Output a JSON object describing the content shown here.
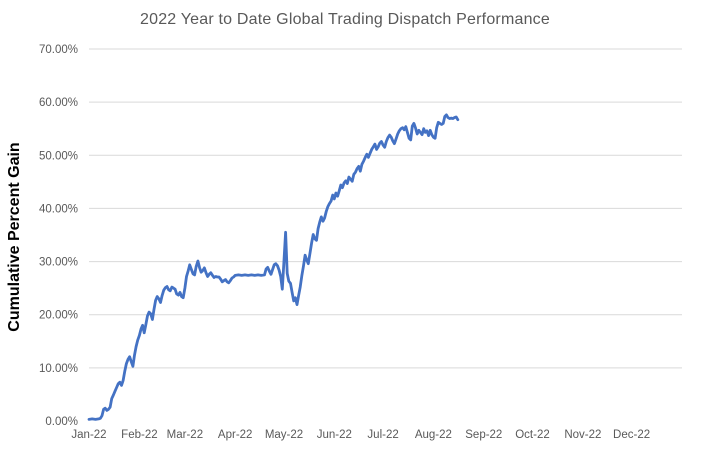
{
  "colors": {
    "line": "#4472C4",
    "title_text": "#595959",
    "axis_text": "#595959",
    "axis_title_text": "#000000",
    "gridline": "#D9D9D9",
    "background": "#FFFFFF"
  },
  "chart_data": {
    "type": "line",
    "title": "2022 Year to Date Global Trading Dispatch Performance",
    "xlabel": "",
    "ylabel": "Cumulative Percent Gain",
    "legend": false,
    "grid": "horizontal",
    "ylim": [
      0,
      70
    ],
    "y_tick_labels": [
      "0.00%",
      "10.00%",
      "20.00%",
      "30.00%",
      "40.00%",
      "50.00%",
      "60.00%",
      "70.00%"
    ],
    "x_tick_labels": [
      "Jan-22",
      "Feb-22",
      "Mar-22",
      "Apr-22",
      "May-22",
      "Jun-22",
      "Jul-22",
      "Aug-22",
      "Sep-22",
      "Oct-22",
      "Nov-22",
      "Dec-22"
    ],
    "x_tick_days": [
      0,
      31,
      59,
      90,
      120,
      151,
      181,
      212,
      243,
      273,
      304,
      334
    ],
    "x_axis_span_days": 365,
    "x_unit": "days since Jan 1 2022",
    "y_unit": "cumulative percent gain",
    "series": [
      {
        "name": "Cumulative Percent Gain",
        "points": [
          [
            0,
            0.3
          ],
          [
            2,
            0.4
          ],
          [
            4,
            0.3
          ],
          [
            6,
            0.4
          ],
          [
            7,
            0.5
          ],
          [
            8,
            1.0
          ],
          [
            9,
            2.2
          ],
          [
            10,
            2.4
          ],
          [
            11,
            2.0
          ],
          [
            12,
            2.2
          ],
          [
            13,
            2.6
          ],
          [
            14,
            4.2
          ],
          [
            15,
            4.9
          ],
          [
            16,
            5.6
          ],
          [
            17,
            6.3
          ],
          [
            18,
            7.0
          ],
          [
            19,
            7.3
          ],
          [
            20,
            6.7
          ],
          [
            21,
            7.6
          ],
          [
            22,
            9.3
          ],
          [
            23,
            10.8
          ],
          [
            24,
            11.6
          ],
          [
            25,
            12.1
          ],
          [
            26,
            11.2
          ],
          [
            27,
            10.3
          ],
          [
            28,
            12.4
          ],
          [
            29,
            14.0
          ],
          [
            30,
            15.2
          ],
          [
            31,
            16.1
          ],
          [
            32,
            17.3
          ],
          [
            33,
            18.0
          ],
          [
            34,
            16.6
          ],
          [
            35,
            18.2
          ],
          [
            36,
            19.8
          ],
          [
            37,
            20.5
          ],
          [
            38,
            20.2
          ],
          [
            39,
            19.1
          ],
          [
            40,
            21.0
          ],
          [
            41,
            22.7
          ],
          [
            42,
            23.4
          ],
          [
            43,
            23.0
          ],
          [
            44,
            22.3
          ],
          [
            45,
            23.6
          ],
          [
            46,
            24.6
          ],
          [
            47,
            25.1
          ],
          [
            48,
            25.3
          ],
          [
            49,
            24.7
          ],
          [
            50,
            24.5
          ],
          [
            51,
            25.2
          ],
          [
            52,
            25.0
          ],
          [
            53,
            24.8
          ],
          [
            54,
            23.9
          ],
          [
            55,
            23.7
          ],
          [
            56,
            24.2
          ],
          [
            57,
            23.4
          ],
          [
            58,
            23.2
          ],
          [
            59,
            25.0
          ],
          [
            60,
            27.2
          ],
          [
            61,
            28.2
          ],
          [
            62,
            29.4
          ],
          [
            63,
            28.5
          ],
          [
            64,
            27.7
          ],
          [
            65,
            27.5
          ],
          [
            66,
            29.1
          ],
          [
            67,
            30.1
          ],
          [
            68,
            28.9
          ],
          [
            69,
            28.0
          ],
          [
            70,
            28.3
          ],
          [
            71,
            28.8
          ],
          [
            72,
            27.9
          ],
          [
            73,
            27.2
          ],
          [
            74,
            27.6
          ],
          [
            75,
            27.9
          ],
          [
            76,
            27.4
          ],
          [
            77,
            27.0
          ],
          [
            78,
            27.2
          ],
          [
            79,
            27.1
          ],
          [
            80,
            27.1
          ],
          [
            81,
            26.7
          ],
          [
            82,
            26.2
          ],
          [
            83,
            26.4
          ],
          [
            84,
            26.6
          ],
          [
            85,
            26.2
          ],
          [
            86,
            26.0
          ],
          [
            87,
            26.4
          ],
          [
            88,
            26.9
          ],
          [
            89,
            27.1
          ],
          [
            90,
            27.4
          ],
          [
            92,
            27.5
          ],
          [
            94,
            27.4
          ],
          [
            96,
            27.5
          ],
          [
            98,
            27.4
          ],
          [
            100,
            27.5
          ],
          [
            102,
            27.4
          ],
          [
            104,
            27.5
          ],
          [
            106,
            27.4
          ],
          [
            108,
            27.5
          ],
          [
            109,
            28.6
          ],
          [
            110,
            28.9
          ],
          [
            111,
            28.2
          ],
          [
            112,
            27.6
          ],
          [
            113,
            28.5
          ],
          [
            114,
            29.4
          ],
          [
            115,
            29.6
          ],
          [
            116,
            29.2
          ],
          [
            117,
            28.4
          ],
          [
            118,
            27.2
          ],
          [
            119,
            24.8
          ],
          [
            120,
            30.2
          ],
          [
            121,
            35.5
          ],
          [
            122,
            27.8
          ],
          [
            123,
            26.3
          ],
          [
            124,
            25.9
          ],
          [
            125,
            24.2
          ],
          [
            126,
            22.6
          ],
          [
            127,
            23.2
          ],
          [
            128,
            21.9
          ],
          [
            129,
            23.6
          ],
          [
            130,
            25.2
          ],
          [
            131,
            27.3
          ],
          [
            132,
            29.2
          ],
          [
            133,
            31.2
          ],
          [
            134,
            30.3
          ],
          [
            135,
            29.6
          ],
          [
            136,
            31.6
          ],
          [
            137,
            33.5
          ],
          [
            138,
            35.1
          ],
          [
            139,
            34.3
          ],
          [
            140,
            34.0
          ],
          [
            141,
            36.2
          ],
          [
            142,
            37.4
          ],
          [
            143,
            38.4
          ],
          [
            144,
            37.6
          ],
          [
            145,
            38.2
          ],
          [
            146,
            39.4
          ],
          [
            147,
            40.3
          ],
          [
            148,
            40.9
          ],
          [
            149,
            41.4
          ],
          [
            150,
            42.5
          ],
          [
            151,
            41.8
          ],
          [
            152,
            42.9
          ],
          [
            153,
            42.3
          ],
          [
            154,
            43.3
          ],
          [
            155,
            44.4
          ],
          [
            156,
            43.9
          ],
          [
            157,
            44.8
          ],
          [
            158,
            45.2
          ],
          [
            159,
            44.7
          ],
          [
            160,
            45.9
          ],
          [
            161,
            45.5
          ],
          [
            162,
            45.1
          ],
          [
            163,
            46.4
          ],
          [
            164,
            46.8
          ],
          [
            165,
            47.5
          ],
          [
            166,
            47.9
          ],
          [
            167,
            47.0
          ],
          [
            168,
            48.3
          ],
          [
            169,
            48.9
          ],
          [
            170,
            49.6
          ],
          [
            171,
            50.2
          ],
          [
            172,
            49.6
          ],
          [
            173,
            50.4
          ],
          [
            174,
            51.1
          ],
          [
            175,
            51.6
          ],
          [
            176,
            52.1
          ],
          [
            177,
            51.1
          ],
          [
            178,
            51.6
          ],
          [
            179,
            52.3
          ],
          [
            180,
            52.6
          ],
          [
            181,
            51.9
          ],
          [
            182,
            51.5
          ],
          [
            183,
            52.6
          ],
          [
            184,
            53.3
          ],
          [
            185,
            53.8
          ],
          [
            186,
            53.4
          ],
          [
            187,
            52.7
          ],
          [
            188,
            52.2
          ],
          [
            189,
            53.1
          ],
          [
            190,
            54.0
          ],
          [
            191,
            54.6
          ],
          [
            192,
            55.0
          ],
          [
            193,
            55.2
          ],
          [
            194,
            54.8
          ],
          [
            195,
            55.4
          ],
          [
            196,
            54.3
          ],
          [
            197,
            53.2
          ],
          [
            198,
            52.9
          ],
          [
            199,
            55.5
          ],
          [
            200,
            56.0
          ],
          [
            201,
            55.1
          ],
          [
            202,
            54.0
          ],
          [
            203,
            54.7
          ],
          [
            204,
            54.3
          ],
          [
            205,
            53.9
          ],
          [
            206,
            55.0
          ],
          [
            207,
            54.3
          ],
          [
            208,
            54.6
          ],
          [
            209,
            53.7
          ],
          [
            210,
            54.7
          ],
          [
            211,
            53.9
          ],
          [
            212,
            53.4
          ],
          [
            213,
            53.2
          ],
          [
            214,
            55.2
          ],
          [
            215,
            56.2
          ],
          [
            216,
            56.0
          ],
          [
            217,
            55.8
          ],
          [
            218,
            56.0
          ],
          [
            219,
            57.3
          ],
          [
            220,
            57.6
          ],
          [
            221,
            57.1
          ],
          [
            222,
            56.9
          ],
          [
            223,
            57.0
          ],
          [
            224,
            56.9
          ],
          [
            225,
            57.1
          ],
          [
            226,
            57.2
          ],
          [
            227,
            56.7
          ]
        ]
      }
    ]
  }
}
